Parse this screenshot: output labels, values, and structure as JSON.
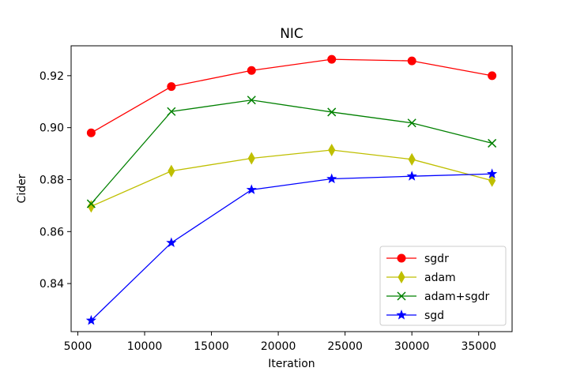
{
  "chart_data": {
    "type": "line",
    "title": "NIC",
    "xlabel": "Iteration",
    "ylabel": "Cider",
    "x": [
      6000,
      12000,
      18000,
      24000,
      30000,
      36000
    ],
    "xlim": [
      4500,
      37500
    ],
    "ylim": [
      0.8215,
      0.9315
    ],
    "xticks": [
      5000,
      10000,
      15000,
      20000,
      25000,
      30000,
      35000
    ],
    "yticks": [
      0.84,
      0.86,
      0.88,
      0.9,
      0.92
    ],
    "grid": false,
    "legend_position": "lower-right",
    "series": [
      {
        "name": "sgdr",
        "color": "#ff0000",
        "marker": "circle",
        "values": [
          0.898,
          0.9158,
          0.922,
          0.9263,
          0.9257,
          0.92
        ]
      },
      {
        "name": "adam",
        "color": "#bfbf00",
        "marker": "thin-diamond",
        "values": [
          0.8697,
          0.8833,
          0.8882,
          0.8914,
          0.8878,
          0.8796
        ]
      },
      {
        "name": "adam+sgdr",
        "color": "#008000",
        "marker": "x",
        "values": [
          0.8707,
          0.9062,
          0.9106,
          0.906,
          0.9018,
          0.894
        ]
      },
      {
        "name": "sgd",
        "color": "#0000ff",
        "marker": "star",
        "values": [
          0.8258,
          0.8557,
          0.8761,
          0.8803,
          0.8813,
          0.8822
        ]
      }
    ]
  }
}
